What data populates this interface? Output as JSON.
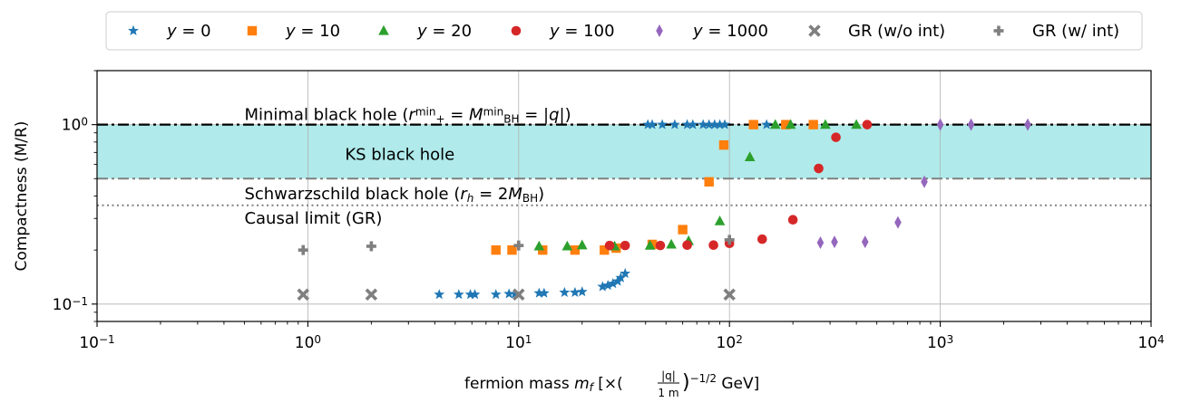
{
  "chart_data": {
    "type": "scatter",
    "title": "",
    "xlabel": {
      "prefix": "fermion mass ",
      "var": "m",
      "sub": "f",
      "rest": " [×(",
      "frac_num": "|q|",
      "frac_den": "1 m",
      "close": ")",
      "exp": "−1/2",
      "unit": " GeV]"
    },
    "ylabel": "Compactness (M/R)",
    "xscale": "log",
    "yscale": "log",
    "xlim": [
      0.1,
      10000
    ],
    "ylim": [
      0.08,
      2.0
    ],
    "grid": true,
    "legend_position": "top",
    "x_ticks": [
      {
        "value": 0.1,
        "base": "10",
        "exp": "−1"
      },
      {
        "value": 1,
        "base": "10",
        "exp": "0"
      },
      {
        "value": 10,
        "base": "10",
        "exp": "1"
      },
      {
        "value": 100,
        "base": "10",
        "exp": "2"
      },
      {
        "value": 1000,
        "base": "10",
        "exp": "3"
      },
      {
        "value": 10000,
        "base": "10",
        "exp": "4"
      }
    ],
    "y_ticks": [
      {
        "value": 0.1,
        "base": "10",
        "exp": "−1"
      },
      {
        "value": 1,
        "base": "10",
        "exp": "0"
      }
    ],
    "bands": [
      {
        "name": "KS black hole",
        "ymin": 0.5,
        "ymax": 1.0,
        "color": "#b0eaea"
      }
    ],
    "hlines": [
      {
        "name": "minimal-black-hole-line",
        "y": 1.0,
        "style": "dashdot",
        "color": "#000000",
        "width": 2.2
      },
      {
        "name": "schwarzschild-line",
        "y": 0.5,
        "style": "dashdot",
        "color": "#808080",
        "width": 2.0
      },
      {
        "name": "causal-limit-line",
        "y": 0.355,
        "style": "dotted",
        "color": "#808080",
        "width": 2.0
      }
    ],
    "annotations": [
      {
        "name": "minimal-black-hole-annotation",
        "x": 0.5,
        "y": 1.06,
        "parts": [
          {
            "t": "Minimal black hole ("
          },
          {
            "t": "r",
            "i": true
          },
          {
            "t": "min",
            "sup": true
          },
          {
            "t": "+",
            "sub": true
          },
          {
            "t": " = "
          },
          {
            "t": "M",
            "i": true
          },
          {
            "t": "min",
            "sup": true
          },
          {
            "t": "BH",
            "sub": true
          },
          {
            "t": " = |"
          },
          {
            "t": "q",
            "i": true
          },
          {
            "t": "|)"
          }
        ]
      },
      {
        "name": "ks-black-hole-annotation",
        "x": 1.5,
        "y": 0.635,
        "parts": [
          {
            "t": "KS black hole"
          }
        ]
      },
      {
        "name": "schwarzschild-annotation",
        "x": 0.5,
        "y": 0.385,
        "parts": [
          {
            "t": "Schwarzschild black hole ("
          },
          {
            "t": "r",
            "i": true
          },
          {
            "t": "h",
            "sub": true,
            "i": true
          },
          {
            "t": " = 2"
          },
          {
            "t": "M",
            "i": true
          },
          {
            "t": "BH",
            "sub": true
          },
          {
            "t": ")"
          }
        ]
      },
      {
        "name": "causal-limit-annotation",
        "x": 0.5,
        "y": 0.28,
        "parts": [
          {
            "t": "Causal limit (GR)"
          }
        ]
      }
    ],
    "series": [
      {
        "name": "y = 0",
        "legend": {
          "var": "y",
          "rest": " = 0"
        },
        "marker": "star",
        "color": "#1f77b4",
        "x": [
          4.2,
          5.2,
          5.9,
          6.2,
          7.8,
          9.0,
          9.6,
          12.5,
          13.2,
          16.5,
          18.5,
          20.0,
          25.0,
          26.5,
          28.0,
          29.5,
          30.5,
          32.0,
          41.0,
          43.0,
          48.0,
          55.0,
          63.0,
          67.0,
          75.0,
          80.0,
          85.0,
          90.0,
          95.0,
          150.0
        ],
        "y": [
          0.113,
          0.113,
          0.113,
          0.113,
          0.113,
          0.114,
          0.114,
          0.115,
          0.115,
          0.116,
          0.116,
          0.117,
          0.125,
          0.127,
          0.13,
          0.134,
          0.14,
          0.148,
          1.0,
          1.0,
          1.0,
          1.0,
          1.0,
          1.0,
          1.0,
          1.0,
          1.0,
          1.0,
          1.0,
          1.0
        ]
      },
      {
        "name": "y = 10",
        "legend": {
          "var": "y",
          "rest": " = 10"
        },
        "marker": "square",
        "color": "#ff7f0e",
        "x": [
          7.8,
          9.3,
          13.0,
          18.5,
          25.5,
          29.0,
          43.0,
          60.0,
          80.0,
          94.0,
          130.0,
          185.0,
          250.0
        ],
        "y": [
          0.2,
          0.2,
          0.2,
          0.2,
          0.2,
          0.205,
          0.215,
          0.26,
          0.48,
          0.77,
          1.0,
          1.0,
          1.0
        ]
      },
      {
        "name": "y = 20",
        "legend": {
          "var": "y",
          "rest": " = 20"
        },
        "marker": "triangle",
        "color": "#2ca02c",
        "x": [
          12.5,
          17.0,
          20.0,
          28.5,
          42.0,
          53.0,
          64.0,
          90.0,
          125.0,
          165.0,
          195.0,
          285.0,
          400.0
        ],
        "y": [
          0.21,
          0.21,
          0.213,
          0.21,
          0.212,
          0.215,
          0.225,
          0.29,
          0.66,
          1.0,
          1.0,
          1.0,
          1.0
        ]
      },
      {
        "name": "y = 100",
        "legend": {
          "var": "y",
          "rest": " = 100"
        },
        "marker": "circle",
        "color": "#d62728",
        "x": [
          27.0,
          32.0,
          47.0,
          63.0,
          84.0,
          100.0,
          143.0,
          200.0,
          265.0,
          320.0,
          450.0
        ],
        "y": [
          0.212,
          0.212,
          0.212,
          0.213,
          0.213,
          0.218,
          0.23,
          0.295,
          0.57,
          0.85,
          1.0
        ]
      },
      {
        "name": "y = 1000",
        "legend": {
          "var": "y",
          "rest": " = 1000"
        },
        "marker": "thin_diamond",
        "color": "#9467bd",
        "x": [
          270.0,
          315.0,
          440.0,
          630.0,
          840.0,
          1000.0,
          1400.0,
          2600.0
        ],
        "y": [
          0.22,
          0.222,
          0.222,
          0.285,
          0.48,
          1.0,
          1.0,
          1.0
        ]
      },
      {
        "name": "GR (w/o int)",
        "legend": {
          "var": "",
          "rest": "GR (w/o int)"
        },
        "marker": "x_filled",
        "color": "#7f7f7f",
        "x": [
          0.95,
          2.0,
          10.0,
          100.0
        ],
        "y": [
          0.113,
          0.113,
          0.113,
          0.113
        ]
      },
      {
        "name": "GR (w/ int)",
        "legend": {
          "var": "",
          "rest": "GR (w/ int)"
        },
        "marker": "plus_filled",
        "color": "#7f7f7f",
        "x": [
          0.95,
          2.0,
          10.0,
          100.0
        ],
        "y": [
          0.2,
          0.21,
          0.212,
          0.228
        ]
      }
    ]
  }
}
